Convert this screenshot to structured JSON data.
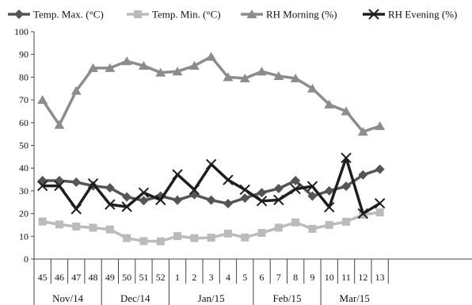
{
  "chart_data": {
    "type": "line",
    "title": "",
    "xlabel": "",
    "ylabel": "",
    "ylim": [
      0,
      100
    ],
    "yticks": [
      0,
      10,
      20,
      30,
      40,
      50,
      60,
      70,
      80,
      90,
      100
    ],
    "categories": [
      "45",
      "46",
      "47",
      "48",
      "49",
      "50",
      "51",
      "52",
      "1",
      "2",
      "3",
      "4",
      "5",
      "6",
      "7",
      "8",
      "9",
      "10",
      "11",
      "12",
      "13"
    ],
    "months": [
      {
        "label": "Nov/14",
        "start": 0,
        "count": 4
      },
      {
        "label": "Dec/14",
        "start": 4,
        "count": 4
      },
      {
        "label": "Jan/15",
        "start": 8,
        "count": 5
      },
      {
        "label": "Feb/15",
        "start": 13,
        "count": 4
      },
      {
        "label": "Mar/15",
        "start": 17,
        "count": 4
      }
    ],
    "grid": false,
    "legend_position": "top",
    "series": [
      {
        "name": "Temp. Max. (°C)",
        "color": "#555555",
        "marker": "diamond",
        "values": [
          34.5,
          34.5,
          33.8,
          32.2,
          31.3,
          27.3,
          25.7,
          27.7,
          25.9,
          28.3,
          25.9,
          24.4,
          26.8,
          29.2,
          31.0,
          34.5,
          27.7,
          30.0,
          32.0,
          37.0,
          39.5
        ]
      },
      {
        "name": "Temp. Min. (°C)",
        "color": "#bbbbbb",
        "marker": "square",
        "values": [
          16.5,
          15.2,
          14.3,
          13.8,
          13.0,
          9.2,
          7.9,
          7.8,
          10.1,
          9.2,
          9.4,
          11.2,
          9.5,
          11.5,
          13.8,
          16.1,
          13.3,
          15.0,
          16.4,
          19.5,
          20.5
        ]
      },
      {
        "name": "RH Morning (%)",
        "color": "#8c8c8c",
        "marker": "triangle",
        "values": [
          70,
          59,
          74,
          84,
          84,
          87,
          85,
          82,
          82.5,
          85,
          89,
          80,
          79.5,
          82.5,
          80.5,
          79.5,
          75,
          68,
          65,
          56,
          58.5
        ]
      },
      {
        "name": "RH Evening (%)",
        "color": "#1e1e1e",
        "marker": "x",
        "values": [
          32.2,
          32.2,
          22.0,
          33.2,
          24.0,
          23.0,
          29.2,
          26.0,
          37.2,
          30.5,
          41.7,
          34.8,
          30.5,
          25.5,
          26.0,
          30.8,
          32.0,
          22.8,
          44.5,
          20.0,
          24.5
        ]
      }
    ]
  }
}
